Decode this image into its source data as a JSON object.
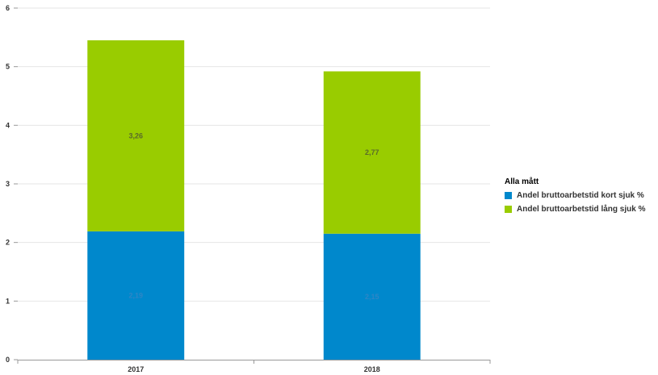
{
  "chart_data": {
    "type": "bar",
    "stacked": true,
    "categories": [
      "2017",
      "2018"
    ],
    "series": [
      {
        "name": "Andel bruttoarbetstid kort sjuk %",
        "values": [
          2.19,
          2.15
        ],
        "color": "#0088cc",
        "label_color": "#2d86c6"
      },
      {
        "name": "Andel bruttoarbetstid lång sjuk %",
        "values": [
          3.26,
          2.77
        ],
        "color": "#99cc00",
        "label_color": "#5a6a2a"
      }
    ],
    "data_labels": [
      [
        "2,19",
        "2,15"
      ],
      [
        "3,26",
        "2,77"
      ]
    ],
    "ylim": [
      0,
      6
    ],
    "yticks": [
      "0",
      "1",
      "2",
      "3",
      "4",
      "5",
      "6"
    ],
    "grid": true,
    "legend": {
      "title": "Alla mått",
      "placement": "right"
    }
  }
}
